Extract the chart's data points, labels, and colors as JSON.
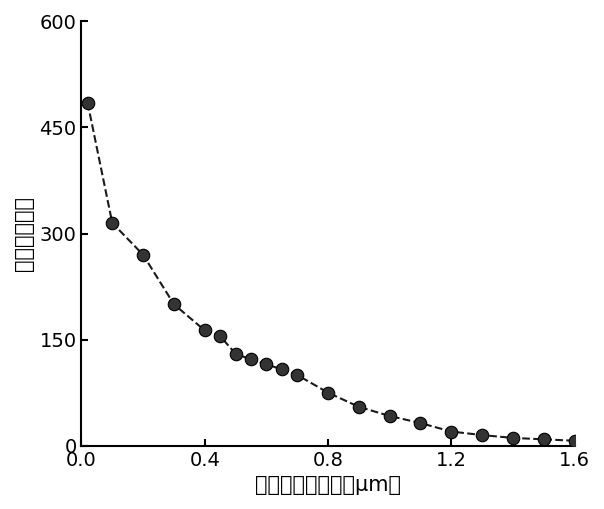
{
  "x": [
    0.02,
    0.1,
    0.2,
    0.3,
    0.4,
    0.45,
    0.5,
    0.55,
    0.6,
    0.65,
    0.7,
    0.8,
    0.9,
    1.0,
    1.1,
    1.2,
    1.3,
    1.4,
    1.5,
    1.6
  ],
  "y": [
    485,
    315,
    270,
    200,
    163,
    155,
    130,
    122,
    115,
    108,
    100,
    75,
    55,
    42,
    32,
    20,
    15,
    11,
    9,
    7
  ],
  "xlabel": "距窄区水平距离（μm）",
  "ylabel": "磁场放大倍数",
  "xlim": [
    0,
    1.6
  ],
  "ylim": [
    0,
    600
  ],
  "xticks": [
    0.0,
    0.4,
    0.8,
    1.2,
    1.6
  ],
  "yticks": [
    0,
    150,
    300,
    450,
    600
  ],
  "xtick_labels": [
    "0.0",
    "0.4",
    "0.8",
    "1.2",
    "1.6"
  ],
  "ytick_labels": [
    "0",
    "150",
    "300",
    "450",
    "600"
  ],
  "line_color": "#1a1a1a",
  "marker_facecolor": "#333333",
  "marker_edgecolor": "#000000",
  "background_color": "#ffffff",
  "marker_size": 9,
  "line_width": 1.5,
  "xlabel_fontsize": 15,
  "ylabel_fontsize": 15,
  "tick_fontsize": 14
}
